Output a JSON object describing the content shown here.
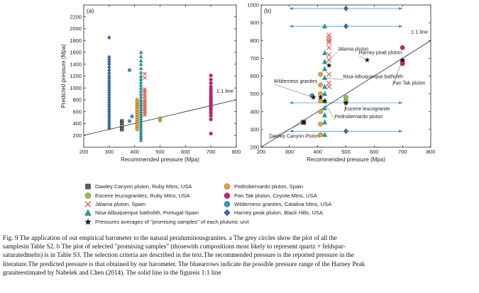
{
  "colors": {
    "dawley": "#6e5a4a",
    "eocene": "#8fc43a",
    "jalama": "#e1574c",
    "nisa": "#16a59a",
    "pedrobernardo": "#f0a131",
    "pantak": "#d01f77",
    "wilderness": "#3c93cf",
    "harney": "#2a6cb5",
    "average": "#111111",
    "arrows": "#3f86c6",
    "line": "#222222"
  },
  "series_names": {
    "dawley": "Dawley Canyon pluton, Ruby Mtns, USA",
    "eocene": "Eocene leucogranites, Ruby Mtns, USA",
    "jalama": "Jálama pluton, Spain",
    "nisa": "Nisa-Albuquerque batholith, Portugal-Spain",
    "pedrobernardo": "Pedrobernardo pluton, Spain",
    "pantak": "Pan Tak pluton, Coyote Mtns, USA",
    "wilderness": "Wilderness granites, Catalina Mtns, USA",
    "harney": "Harney peak pluton, Black Hills, USA",
    "average": "Pressures averages of \"promising samples\" of each plutonic unit"
  },
  "caption_lines": [
    "Fig. 9  The application of our empirical barometer to the natural peraluminousgranites. a The grey circles show the plot of all the",
    "samplesin Table S2. b The plot of selected \"promising samples\" (thosewith compositions most likely to represent quartz + feldspar-",
    "saturatedmelts) is in Table S3. The selection criteria are described in the text.The recommended pressure is the reported pressure in the",
    "literature.The predicted pressure is that obtained by our barometer. The bluearrows indicate the possible pressure range of the Harney Peak",
    "graniteestimated by Nabelek and Chen (2014). The solid line in the figureis 1:1 line"
  ],
  "chart_data": [
    {
      "type": "scatter",
      "panel_label": "(a)",
      "title": "",
      "xlabel": "Recommended pressure (Mpa)",
      "ylabel": "Predicted pressure (Mpa)",
      "xlim": [
        200,
        800
      ],
      "ylim": [
        0,
        2400
      ],
      "xticks": [
        200,
        300,
        400,
        500,
        600,
        700,
        800
      ],
      "yticks": [
        200,
        400,
        600,
        800,
        1000,
        1200,
        1400,
        1600,
        1800,
        2000,
        2200
      ],
      "one_to_one_label": "1:1 line",
      "series": [
        {
          "key": "harney",
          "marker": "diamond",
          "points": [
            [
              300,
              1850
            ],
            [
              300,
              1520
            ],
            [
              300,
              1480
            ],
            [
              300,
              1440
            ],
            [
              300,
              1400
            ],
            [
              300,
              1350
            ],
            [
              300,
              1300
            ],
            [
              300,
              1250
            ],
            [
              300,
              1200
            ],
            [
              300,
              1160
            ],
            [
              300,
              1120
            ],
            [
              300,
              1080
            ],
            [
              300,
              1040
            ],
            [
              300,
              1000
            ],
            [
              300,
              960
            ],
            [
              300,
              920
            ],
            [
              300,
              880
            ],
            [
              300,
              840
            ],
            [
              300,
              800
            ],
            [
              300,
              760
            ],
            [
              300,
              720
            ],
            [
              300,
              680
            ],
            [
              300,
              640
            ],
            [
              300,
              600
            ],
            [
              300,
              560
            ],
            [
              300,
              520
            ],
            [
              300,
              480
            ],
            [
              300,
              440
            ],
            [
              300,
              400
            ],
            [
              300,
              360
            ],
            [
              300,
              320
            ]
          ]
        },
        {
          "key": "dawley",
          "marker": "square",
          "points": [
            [
              350,
              440
            ],
            [
              350,
              400
            ],
            [
              350,
              330
            ],
            [
              350,
              300
            ]
          ]
        },
        {
          "key": "wilderness",
          "marker": "circle",
          "points": [
            [
              380,
              1300
            ],
            [
              390,
              520
            ],
            [
              380,
              440
            ]
          ]
        },
        {
          "key": "pedrobernardo",
          "marker": "circle",
          "points": [
            [
              410,
              800
            ],
            [
              410,
              760
            ],
            [
              410,
              720
            ],
            [
              410,
              690
            ],
            [
              410,
              660
            ],
            [
              410,
              620
            ],
            [
              410,
              580
            ],
            [
              410,
              540
            ],
            [
              410,
              500
            ],
            [
              410,
              460
            ],
            [
              410,
              420
            ],
            [
              410,
              380
            ],
            [
              410,
              340
            ],
            [
              410,
              300
            ]
          ]
        },
        {
          "key": "nisa",
          "marker": "triangle",
          "points": [
            [
              425,
              1600
            ],
            [
              425,
              1530
            ],
            [
              425,
              1460
            ],
            [
              425,
              1400
            ],
            [
              425,
              1330
            ],
            [
              425,
              1260
            ],
            [
              425,
              1200
            ],
            [
              425,
              1150
            ],
            [
              425,
              1100
            ],
            [
              425,
              1050
            ],
            [
              425,
              1000
            ],
            [
              425,
              950
            ],
            [
              425,
              900
            ],
            [
              425,
              850
            ],
            [
              425,
              800
            ],
            [
              425,
              760
            ],
            [
              425,
              720
            ],
            [
              425,
              680
            ],
            [
              425,
              640
            ],
            [
              425,
              600
            ],
            [
              425,
              560
            ],
            [
              425,
              520
            ],
            [
              425,
              480
            ],
            [
              425,
              440
            ],
            [
              425,
              400
            ],
            [
              425,
              360
            ],
            [
              425,
              320
            ],
            [
              425,
              280
            ],
            [
              425,
              240
            ],
            [
              425,
              200
            ],
            [
              425,
              160
            ],
            [
              425,
              120
            ]
          ]
        },
        {
          "key": "jalama",
          "marker": "x",
          "points": [
            [
              440,
              1240
            ],
            [
              440,
              1170
            ],
            [
              440,
              980
            ],
            [
              440,
              950
            ],
            [
              440,
              920
            ],
            [
              440,
              880
            ],
            [
              440,
              850
            ],
            [
              440,
              810
            ],
            [
              440,
              780
            ],
            [
              440,
              750
            ],
            [
              440,
              720
            ],
            [
              440,
              690
            ],
            [
              440,
              660
            ],
            [
              440,
              630
            ],
            [
              440,
              600
            ],
            [
              440,
              570
            ],
            [
              440,
              540
            ]
          ]
        },
        {
          "key": "eocene",
          "marker": "circle",
          "points": [
            [
              500,
              490
            ],
            [
              500,
              450
            ]
          ]
        },
        {
          "key": "pantak",
          "marker": "circle",
          "points": [
            [
              700,
              1210
            ],
            [
              700,
              1140
            ],
            [
              700,
              1080
            ],
            [
              700,
              1020
            ],
            [
              700,
              980
            ],
            [
              700,
              940
            ],
            [
              700,
              900
            ],
            [
              700,
              860
            ],
            [
              700,
              830
            ],
            [
              700,
              800
            ],
            [
              700,
              770
            ],
            [
              700,
              740
            ],
            [
              700,
              710
            ],
            [
              700,
              680
            ],
            [
              700,
              650
            ],
            [
              700,
              620
            ],
            [
              700,
              580
            ],
            [
              700,
              530
            ],
            [
              700,
              470
            ],
            [
              700,
              230
            ]
          ]
        }
      ]
    },
    {
      "type": "scatter",
      "panel_label": "(b)",
      "title": "",
      "xlabel": "Recommended pressure (Mpa)",
      "ylabel": "",
      "xlim": [
        200,
        800
      ],
      "ylim": [
        200,
        1000
      ],
      "xticks": [
        200,
        300,
        400,
        500,
        600,
        700,
        800
      ],
      "yticks": [
        200,
        300,
        400,
        500,
        600,
        700,
        800,
        900,
        1000
      ],
      "one_to_one_label": "1:1 line",
      "harney_range_arrows": [
        {
          "y": 980,
          "x_from": 300,
          "x_to": 700
        },
        {
          "y": 880,
          "x_from": 300,
          "x_to": 700
        },
        {
          "y": 450,
          "x_from": 300,
          "x_to": 700
        },
        {
          "y": 290,
          "x_from": 300,
          "x_to": 700
        }
      ],
      "series": [
        {
          "key": "harney",
          "marker": "diamond",
          "points": [
            [
              500,
              980
            ],
            [
              500,
              880
            ],
            [
              500,
              450
            ],
            [
              500,
              290
            ]
          ]
        },
        {
          "key": "dawley",
          "marker": "square",
          "points": [
            [
              350,
              340
            ]
          ]
        },
        {
          "key": "wilderness",
          "marker": "circle",
          "points": [
            [
              380,
              490
            ]
          ]
        },
        {
          "key": "pedrobernardo",
          "marker": "circle",
          "points": [
            [
              410,
              610
            ],
            [
              410,
              550
            ],
            [
              410,
              500
            ],
            [
              410,
              460
            ],
            [
              410,
              400
            ],
            [
              410,
              330
            ],
            [
              410,
              270
            ]
          ]
        },
        {
          "key": "nisa",
          "marker": "triangle",
          "points": [
            [
              425,
              880
            ],
            [
              425,
              730
            ],
            [
              425,
              680
            ],
            [
              425,
              640
            ],
            [
              425,
              590
            ],
            [
              425,
              540
            ],
            [
              425,
              500
            ],
            [
              425,
              460
            ],
            [
              425,
              420
            ],
            [
              425,
              380
            ],
            [
              425,
              340
            ],
            [
              425,
              270
            ]
          ]
        },
        {
          "key": "jalama",
          "marker": "x",
          "points": [
            [
              440,
              830
            ],
            [
              440,
              815
            ],
            [
              440,
              800
            ],
            [
              440,
              790
            ],
            [
              440,
              760
            ],
            [
              440,
              720
            ],
            [
              440,
              690
            ],
            [
              440,
              610
            ],
            [
              440,
              560
            ],
            [
              440,
              540
            ]
          ]
        },
        {
          "key": "eocene",
          "marker": "circle",
          "points": [
            [
              500,
              480
            ],
            [
              500,
              460
            ]
          ]
        },
        {
          "key": "pantak",
          "marker": "circle",
          "points": [
            [
              700,
              760
            ],
            [
              700,
              685
            ],
            [
              700,
              670
            ]
          ]
        },
        {
          "key": "average",
          "marker": "star",
          "points": [
            [
              350,
              340
            ],
            [
              385,
              480
            ],
            [
              410,
              480
            ],
            [
              425,
              460
            ],
            [
              440,
              660
            ],
            [
              500,
              450
            ],
            [
              575,
              690
            ],
            [
              700,
              690
            ]
          ]
        }
      ],
      "annotations": [
        {
          "text": "Jálama pluton",
          "anchor": [
            440,
            690
          ],
          "label_at": [
            470,
            735
          ]
        },
        {
          "text": "Harney peak pluton",
          "anchor": [
            575,
            690
          ],
          "label_at": [
            545,
            715
          ]
        },
        {
          "text": "Wilderness granites",
          "anchor": [
            385,
            480
          ],
          "label_at": [
            245,
            555
          ]
        },
        {
          "text": "Nisa-Albuquerque batholith",
          "anchor": [
            425,
            590
          ],
          "label_at": [
            490,
            580
          ]
        },
        {
          "text": "Pan Tak pluton",
          "anchor": [
            700,
            690
          ],
          "label_at": [
            665,
            545
          ]
        },
        {
          "text": "Eocene leucogranite",
          "anchor": [
            500,
            460
          ],
          "label_at": [
            495,
            400
          ]
        },
        {
          "text": "Pedrobernardo pluton",
          "anchor": [
            425,
            450
          ],
          "label_at": [
            460,
            355
          ]
        },
        {
          "text": "Dawley Canyon Pluton",
          "anchor": [
            350,
            340
          ],
          "label_at": [
            228,
            245
          ]
        }
      ]
    }
  ]
}
